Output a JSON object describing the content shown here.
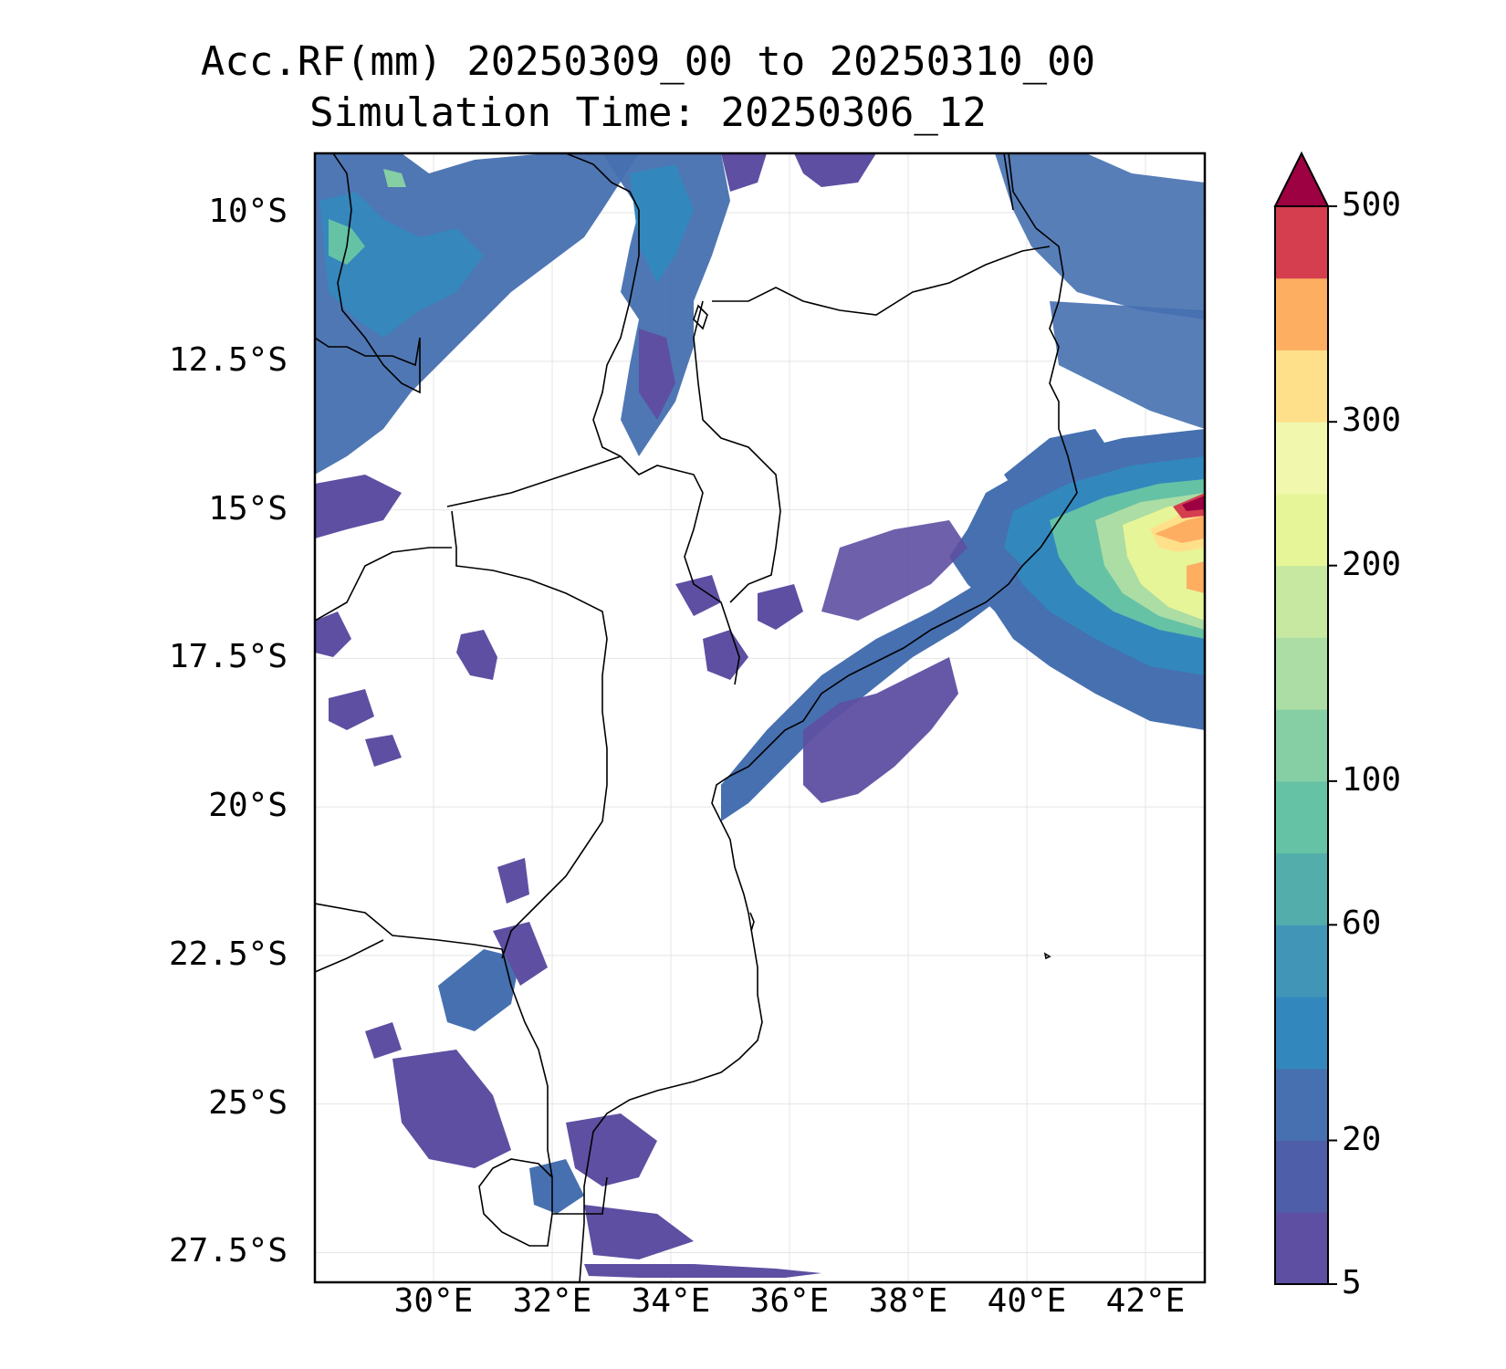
{
  "title": {
    "line1": "Acc.RF(mm) 20250309_00 to 20250310_00",
    "line2": "Simulation Time: 20250306_12"
  },
  "map": {
    "lon_range": [
      28.0,
      43.0
    ],
    "lat_range": [
      -28.0,
      -9.0
    ],
    "lat_ticks": [
      {
        "value": -10.0,
        "label": "10°S"
      },
      {
        "value": -12.5,
        "label": "12.5°S"
      },
      {
        "value": -15.0,
        "label": "15°S"
      },
      {
        "value": -17.5,
        "label": "17.5°S"
      },
      {
        "value": -20.0,
        "label": "20°S"
      },
      {
        "value": -22.5,
        "label": "22.5°S"
      },
      {
        "value": -25.0,
        "label": "25°S"
      },
      {
        "value": -27.5,
        "label": "27.5°S"
      }
    ],
    "lon_ticks": [
      {
        "value": 30,
        "label": "30°E"
      },
      {
        "value": 32,
        "label": "32°E"
      },
      {
        "value": 34,
        "label": "34°E"
      },
      {
        "value": 36,
        "label": "36°E"
      },
      {
        "value": 38,
        "label": "38°E"
      },
      {
        "value": 40,
        "label": "40°E"
      },
      {
        "value": 42,
        "label": "42°E"
      }
    ],
    "gridlines": true
  },
  "colorbar": {
    "extend": "max",
    "levels": [
      5,
      10,
      20,
      40,
      50,
      60,
      80,
      100,
      125,
      150,
      200,
      250,
      300,
      350,
      450,
      500
    ],
    "colors": [
      "#5e4fa2",
      "#4f5ea8",
      "#4670b0",
      "#3288bd",
      "#4196b7",
      "#53aeab",
      "#66c2a5",
      "#86cfa5",
      "#abdda4",
      "#c6e8a0",
      "#e6f598",
      "#f1f8ad",
      "#fee08b",
      "#fdae61",
      "#d53e4f"
    ],
    "extend_color": "#9e0142",
    "tick_labels": [
      {
        "value": 5,
        "label": "5"
      },
      {
        "value": 20,
        "label": "20"
      },
      {
        "value": 60,
        "label": "60"
      },
      {
        "value": 100,
        "label": "100"
      },
      {
        "value": 200,
        "label": "200"
      },
      {
        "value": 300,
        "label": "300"
      },
      {
        "value": 500,
        "label": "500"
      }
    ]
  },
  "boundary_color": "#000000"
}
